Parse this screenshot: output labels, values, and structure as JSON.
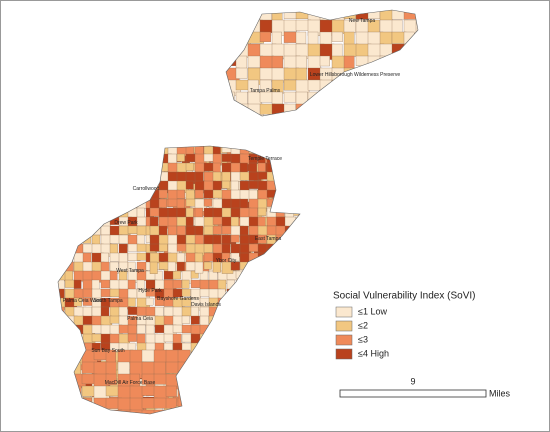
{
  "legend": {
    "title": "Social Vulnerability Index (SoVI)",
    "items": [
      {
        "label": "≤1 Low",
        "color": "#fbe8cf"
      },
      {
        "label": "≤2",
        "color": "#f2c781"
      },
      {
        "label": "≤3",
        "color": "#ef8a5a"
      },
      {
        "label": "≤4 High",
        "color": "#b9421d"
      }
    ]
  },
  "scale": {
    "value": "9",
    "unit": "Miles"
  },
  "places": [
    "New Tampa",
    "Lower Hillsborough Wilderness Preserve",
    "Tampa Palms",
    "Temple Terrace",
    "Carrollwood",
    "Drew Park",
    "East Tampa",
    "Ybor City",
    "West Tampa",
    "Hyde Park",
    "South Tampa",
    "Palma Ceia",
    "Palma Ceia West",
    "Bayshore Gardens",
    "Davis Islands",
    "Sun Bay South",
    "MacDill Air Force Base"
  ]
}
